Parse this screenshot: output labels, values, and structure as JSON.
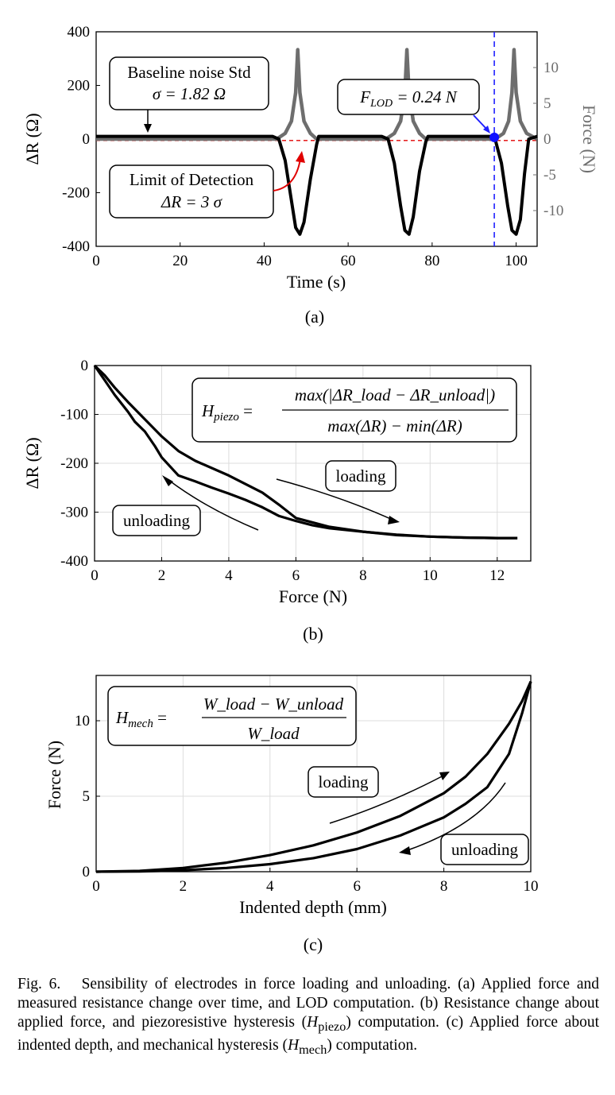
{
  "chart_data": [
    {
      "id": "a",
      "type": "line",
      "panel_label": "(a)",
      "xlabel": "Time (s)",
      "ylabel": "ΔR (Ω)",
      "y2label": "Force (N)",
      "xlim": [
        0,
        105
      ],
      "ylim": [
        -400,
        400
      ],
      "y2lim": [
        -15,
        15
      ],
      "xticks": [
        "0",
        "20",
        "40",
        "60",
        "80",
        "100"
      ],
      "yticks": [
        "400",
        "200",
        "0",
        "-200",
        "-400"
      ],
      "y2ticks": [
        "10",
        "5",
        "0",
        "-5",
        "-10"
      ],
      "series": [
        {
          "name": "ΔR",
          "axis": "left",
          "color": "#000000",
          "x": [
            0,
            42,
            43.5,
            45,
            46.5,
            47.5,
            48.5,
            49.5,
            51,
            52.5,
            53,
            68,
            69.5,
            71,
            72.5,
            73.5,
            74.5,
            75.5,
            77,
            78.5,
            79,
            94,
            95,
            96.5,
            98,
            99,
            100,
            101,
            102,
            103,
            105
          ],
          "y": [
            10,
            10,
            0,
            -80,
            -230,
            -330,
            -355,
            -310,
            -150,
            -20,
            10,
            10,
            0,
            -90,
            -250,
            -340,
            -355,
            -290,
            -120,
            -10,
            10,
            10,
            0,
            -90,
            -250,
            -340,
            -355,
            -300,
            -130,
            0,
            10
          ]
        },
        {
          "name": "Force",
          "axis": "right",
          "color": "#6e6e6e",
          "x": [
            0,
            43,
            45,
            46.5,
            47.5,
            48,
            48.5,
            49.5,
            51,
            52.5,
            69,
            71,
            72.5,
            73.5,
            74,
            74.5,
            75.5,
            77,
            78.5,
            95,
            97,
            98.2,
            99,
            99.5,
            100,
            101,
            102.5,
            105
          ],
          "y": [
            0,
            0,
            0.8,
            2.5,
            6.5,
            12.5,
            6.5,
            2.5,
            0.8,
            0,
            0,
            0.8,
            2.5,
            6.5,
            12.5,
            6.5,
            2.5,
            0.8,
            0,
            0,
            0.8,
            2.5,
            6.5,
            12.5,
            6.5,
            2.5,
            0.8,
            0
          ]
        }
      ],
      "lod_line_value": -5.46,
      "lod_vline_time": 94.8,
      "lod_point": {
        "time": 94.8,
        "force": 0.24
      },
      "annotations": {
        "noise_line1": "Baseline noise Std",
        "noise_line2": "σ = 1.82 Ω",
        "lod_line1": "Limit of Detection",
        "lod_line2": "ΔR = 3 σ",
        "flod": "F",
        "flod_sub": "LOD",
        "flod_value": " = 0.24 N"
      }
    },
    {
      "id": "b",
      "type": "line",
      "panel_label": "(b)",
      "xlabel": "Force (N)",
      "ylabel": "ΔR (Ω)",
      "xlim": [
        0,
        13
      ],
      "ylim": [
        -400,
        0
      ],
      "xticks": [
        "0",
        "2",
        "4",
        "6",
        "8",
        "10",
        "12"
      ],
      "yticks": [
        "0",
        "-100",
        "-200",
        "-300",
        "-400"
      ],
      "series": [
        {
          "name": "loading",
          "color": "#000000",
          "x": [
            0,
            0.3,
            0.6,
            1,
            1.5,
            2,
            2.5,
            3,
            4,
            5,
            5.5,
            6,
            7,
            8,
            9,
            10,
            11,
            12,
            12.6
          ],
          "y": [
            0,
            -20,
            -45,
            -75,
            -110,
            -145,
            -175,
            -195,
            -225,
            -260,
            -285,
            -312,
            -330,
            -340,
            -347,
            -350,
            -352,
            -353,
            -353
          ]
        },
        {
          "name": "unloading",
          "color": "#000000",
          "x": [
            12.6,
            12,
            11,
            10,
            9,
            8,
            7,
            6.5,
            6,
            5.5,
            5,
            4.5,
            4,
            3.5,
            3,
            2.5,
            2,
            1.8,
            1.5,
            1.2,
            1,
            0.6,
            0.3,
            0
          ],
          "y": [
            -353,
            -353,
            -352,
            -350,
            -346,
            -340,
            -333,
            -327,
            -318,
            -308,
            -290,
            -275,
            -262,
            -250,
            -237,
            -225,
            -188,
            -165,
            -135,
            -115,
            -95,
            -60,
            -30,
            0
          ]
        }
      ],
      "equation": {
        "lhs": "H",
        "lhs_sub": "piezo",
        "numerator": "max(|ΔR_load − ΔR_unload|)",
        "denominator": "max(ΔR) − min(ΔR)"
      },
      "labels": {
        "loading": "loading",
        "unloading": "unloading"
      }
    },
    {
      "id": "c",
      "type": "line",
      "panel_label": "(c)",
      "xlabel": "Indented depth (mm)",
      "ylabel": "Force (N)",
      "xlim": [
        0,
        10
      ],
      "ylim": [
        0,
        13
      ],
      "xticks": [
        "0",
        "2",
        "4",
        "6",
        "8",
        "10"
      ],
      "yticks": [
        "10",
        "5",
        "0"
      ],
      "series": [
        {
          "name": "loading",
          "color": "#000000",
          "x": [
            0,
            1,
            2,
            3,
            4,
            5,
            6,
            7,
            8,
            8.5,
            9,
            9.5,
            9.8,
            10
          ],
          "y": [
            0,
            0.05,
            0.25,
            0.6,
            1.1,
            1.75,
            2.6,
            3.7,
            5.2,
            6.3,
            7.8,
            9.8,
            11.3,
            12.6
          ]
        },
        {
          "name": "unloading",
          "color": "#000000",
          "x": [
            10,
            9.8,
            9.5,
            9,
            8.5,
            8,
            7,
            6,
            5,
            4,
            3,
            2,
            1,
            0
          ],
          "y": [
            12.6,
            10.5,
            7.8,
            5.6,
            4.5,
            3.6,
            2.4,
            1.5,
            0.9,
            0.5,
            0.25,
            0.1,
            0.02,
            0
          ]
        }
      ],
      "equation": {
        "lhs": "H",
        "lhs_sub": "mech",
        "numerator": "W_load − W_unload",
        "denominator": "W_load"
      },
      "labels": {
        "loading": "loading",
        "unloading": "unloading"
      }
    }
  ],
  "caption": {
    "fig": "Fig. 6.",
    "text1": "Sensibility of electrodes in force loading and unloading. (a) Applied force and measured resistance change over time, and LOD computation. (b) Resistance change about applied force, and piezoresistive hysteresis (",
    "h_piezo": "H",
    "h_piezo_sub": "piezo",
    "text2": ") computation. (c) Applied force about indented depth, and mechanical hysteresis (",
    "h_mech": "H",
    "h_mech_sub": "mech",
    "text3": ") computation."
  }
}
